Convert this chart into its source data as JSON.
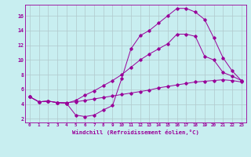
{
  "xlabel": "Windchill (Refroidissement éolien,°C)",
  "bg_color": "#c8eef0",
  "line_color": "#990099",
  "grid_color": "#b0c8cc",
  "xlim": [
    -0.5,
    23.5
  ],
  "ylim": [
    1.5,
    17.5
  ],
  "xtick_labels": [
    "0",
    "1",
    "2",
    "3",
    "4",
    "5",
    "6",
    "7",
    "8",
    "9",
    "10",
    "11",
    "12",
    "13",
    "14",
    "15",
    "16",
    "17",
    "18",
    "19",
    "20",
    "21",
    "22",
    "23"
  ],
  "ytick_vals": [
    2,
    4,
    6,
    8,
    10,
    12,
    14,
    16
  ],
  "line1_x": [
    0,
    1,
    2,
    3,
    4,
    5,
    6,
    7,
    8,
    9,
    10,
    11,
    12,
    13,
    14,
    15,
    16,
    17,
    18,
    19,
    20,
    21,
    22,
    23
  ],
  "line1_y": [
    5.0,
    4.3,
    4.4,
    4.2,
    4.1,
    4.5,
    5.2,
    5.8,
    6.5,
    7.2,
    8.0,
    9.0,
    10.0,
    10.8,
    11.5,
    12.2,
    13.5,
    13.5,
    13.2,
    10.5,
    10.0,
    8.3,
    7.8,
    7.2
  ],
  "line2_x": [
    0,
    1,
    2,
    3,
    4,
    5,
    6,
    7,
    8,
    9,
    10,
    11,
    12,
    13,
    14,
    15,
    16,
    17,
    18,
    19,
    20,
    21,
    22,
    23
  ],
  "line2_y": [
    5.0,
    4.3,
    4.4,
    4.2,
    4.1,
    2.5,
    2.3,
    2.5,
    3.2,
    3.8,
    7.5,
    11.5,
    13.3,
    14.0,
    15.0,
    16.0,
    17.0,
    17.0,
    16.5,
    15.5,
    13.0,
    10.3,
    8.5,
    7.2
  ],
  "line3_x": [
    0,
    1,
    2,
    3,
    4,
    5,
    6,
    7,
    8,
    9,
    10,
    11,
    12,
    13,
    14,
    15,
    16,
    17,
    18,
    19,
    20,
    21,
    22,
    23
  ],
  "line3_y": [
    5.0,
    4.3,
    4.4,
    4.2,
    4.2,
    4.3,
    4.5,
    4.7,
    4.9,
    5.1,
    5.3,
    5.5,
    5.7,
    5.9,
    6.2,
    6.4,
    6.6,
    6.8,
    7.0,
    7.1,
    7.2,
    7.3,
    7.2,
    7.0
  ]
}
